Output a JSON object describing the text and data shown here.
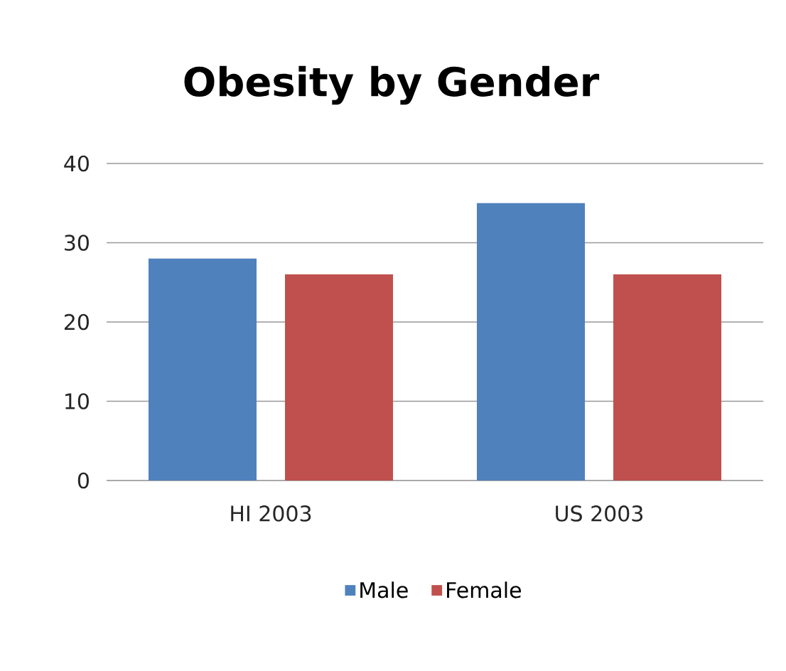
{
  "chart_data": {
    "type": "bar",
    "title": "Obesity by Gender",
    "categories": [
      "HI 2003",
      "US 2003"
    ],
    "series": [
      {
        "name": "Male",
        "color": "#4f81bd",
        "values": [
          28,
          35
        ]
      },
      {
        "name": "Female",
        "color": "#c0504d",
        "values": [
          26,
          26
        ]
      }
    ],
    "ylim": [
      0,
      40
    ],
    "yticks": [
      0,
      10,
      20,
      30,
      40
    ],
    "grid": "y",
    "legend": "bottom"
  }
}
